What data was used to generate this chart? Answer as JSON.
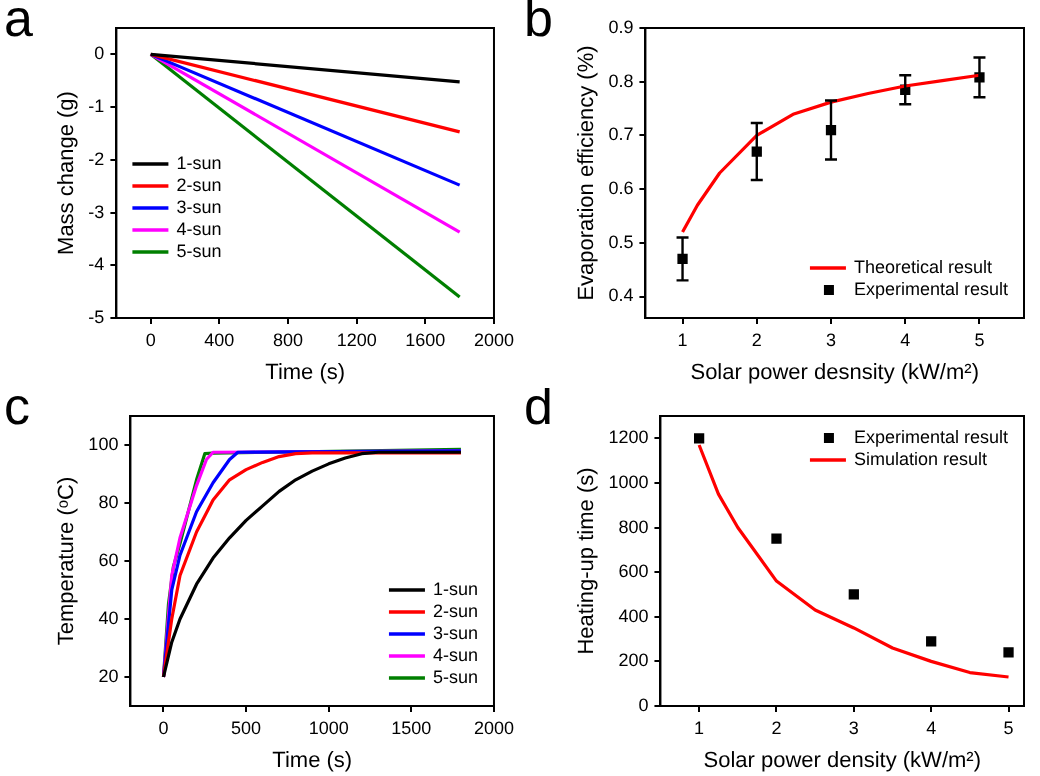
{
  "chart_data": [
    {
      "type": "line",
      "title": "a",
      "xlabel": "Time (s)",
      "ylabel": "Mass change (g)",
      "x": [
        0,
        1800
      ],
      "xlim": [
        -200,
        2000
      ],
      "xticks": [
        0,
        400,
        800,
        1200,
        1600,
        2000
      ],
      "ylim": [
        -5,
        0.5
      ],
      "yticks": [
        -5,
        -4,
        -3,
        -2,
        -1,
        0
      ],
      "legend": "left",
      "marker": "none",
      "series": [
        {
          "name": "1-sun",
          "color": "#000000",
          "values": [
            0,
            -0.52
          ]
        },
        {
          "name": "2-sun",
          "color": "#ff0000",
          "values": [
            0,
            -1.47
          ]
        },
        {
          "name": "3-sun",
          "color": "#0000ff",
          "values": [
            0,
            -2.48
          ]
        },
        {
          "name": "4-sun",
          "color": "#ff00ff",
          "values": [
            0,
            -3.37
          ]
        },
        {
          "name": "5-sun",
          "color": "#007f00",
          "values": [
            0,
            -4.6
          ]
        }
      ]
    },
    {
      "type": "line",
      "title": "b",
      "xlabel": "Solar power desnsity (kW/m²)",
      "ylabel": "Evaporation efficiency (%)",
      "xlim": [
        0.5,
        5.6
      ],
      "xticks": [
        1,
        2,
        3,
        4,
        5
      ],
      "ylim": [
        0.36,
        0.9
      ],
      "yticks": [
        0.4,
        0.5,
        0.6,
        0.7,
        0.8,
        0.9
      ],
      "legend": "bottom right",
      "series": [
        {
          "name": "Theoretical result",
          "type": "line",
          "marker": "none",
          "color": "#ff0000",
          "x": [
            1,
            1.2,
            1.5,
            2,
            2.5,
            3,
            3.5,
            4,
            4.5,
            5
          ],
          "values": [
            0.52,
            0.57,
            0.63,
            0.7,
            0.74,
            0.762,
            0.778,
            0.792,
            0.802,
            0.812
          ]
        },
        {
          "name": "Experimental result",
          "type": "scatter",
          "marker": "square",
          "color": "#000000",
          "x": [
            1,
            2,
            3,
            4,
            5
          ],
          "values": [
            0.47,
            0.67,
            0.71,
            0.785,
            0.808
          ],
          "errors": [
            0.04,
            0.053,
            0.055,
            0.027,
            0.037
          ]
        }
      ]
    },
    {
      "type": "line",
      "title": "c",
      "xlabel": "Time (s)",
      "ylabel": "Temperature (ᵒC)",
      "xlim": [
        -200,
        2000
      ],
      "xticks": [
        0,
        500,
        1000,
        1500,
        2000
      ],
      "ylim": [
        10,
        110
      ],
      "yticks": [
        20,
        40,
        60,
        80,
        100
      ],
      "legend": "bottom right",
      "marker": "none",
      "series": [
        {
          "name": "1-sun",
          "color": "#000000",
          "x": [
            0,
            50,
            100,
            200,
            300,
            400,
            500,
            600,
            700,
            800,
            900,
            1000,
            1100,
            1200,
            1300,
            1800
          ],
          "values": [
            20,
            32,
            40,
            52,
            61,
            68,
            74,
            79,
            84,
            88,
            91,
            93.5,
            95.5,
            97,
            97.5,
            97.5
          ]
        },
        {
          "name": "2-sun",
          "color": "#ff0000",
          "x": [
            0,
            50,
            100,
            200,
            300,
            400,
            500,
            600,
            700,
            800,
            900,
            1800
          ],
          "values": [
            20,
            40,
            55,
            70,
            81,
            88,
            91.5,
            94,
            96,
            97,
            97.3,
            97.3
          ]
        },
        {
          "name": "3-sun",
          "color": "#0000ff",
          "x": [
            0,
            50,
            100,
            200,
            300,
            400,
            450,
            1800
          ],
          "values": [
            20,
            50,
            62,
            77,
            87,
            95,
            97.5,
            98
          ]
        },
        {
          "name": "4-sun",
          "color": "#ff00ff",
          "x": [
            0,
            50,
            100,
            200,
            260,
            300,
            1800
          ],
          "values": [
            20,
            55,
            68,
            86,
            95,
            97.5,
            98
          ]
        },
        {
          "name": "5-sun",
          "color": "#007f00",
          "x": [
            0,
            30,
            60,
            100,
            200,
            250,
            300,
            1800
          ],
          "values": [
            20,
            45,
            58,
            66,
            88,
            97,
            97.2,
            98.5
          ]
        }
      ]
    },
    {
      "type": "line",
      "title": "d",
      "xlabel": "Solar power density (kW/m²)",
      "ylabel": "Heating-up time (s)",
      "xlim": [
        0.5,
        5.2
      ],
      "xticks": [
        1,
        2,
        3,
        4,
        5
      ],
      "ylim": [
        0,
        1300
      ],
      "yticks": [
        0,
        200,
        400,
        600,
        800,
        1000,
        1200
      ],
      "legend": "top right",
      "series": [
        {
          "name": "Experimental result",
          "type": "scatter",
          "marker": "square",
          "color": "#000000",
          "x": [
            1,
            2,
            3,
            4,
            5
          ],
          "values": [
            1200,
            750,
            500,
            290,
            240
          ]
        },
        {
          "name": "Simulation result",
          "type": "line",
          "marker": "none",
          "color": "#ff0000",
          "x": [
            1,
            1.25,
            1.5,
            2,
            2.5,
            3,
            3.5,
            4,
            4.5,
            5
          ],
          "values": [
            1170,
            950,
            800,
            560,
            430,
            350,
            260,
            200,
            150,
            130
          ]
        }
      ]
    }
  ]
}
